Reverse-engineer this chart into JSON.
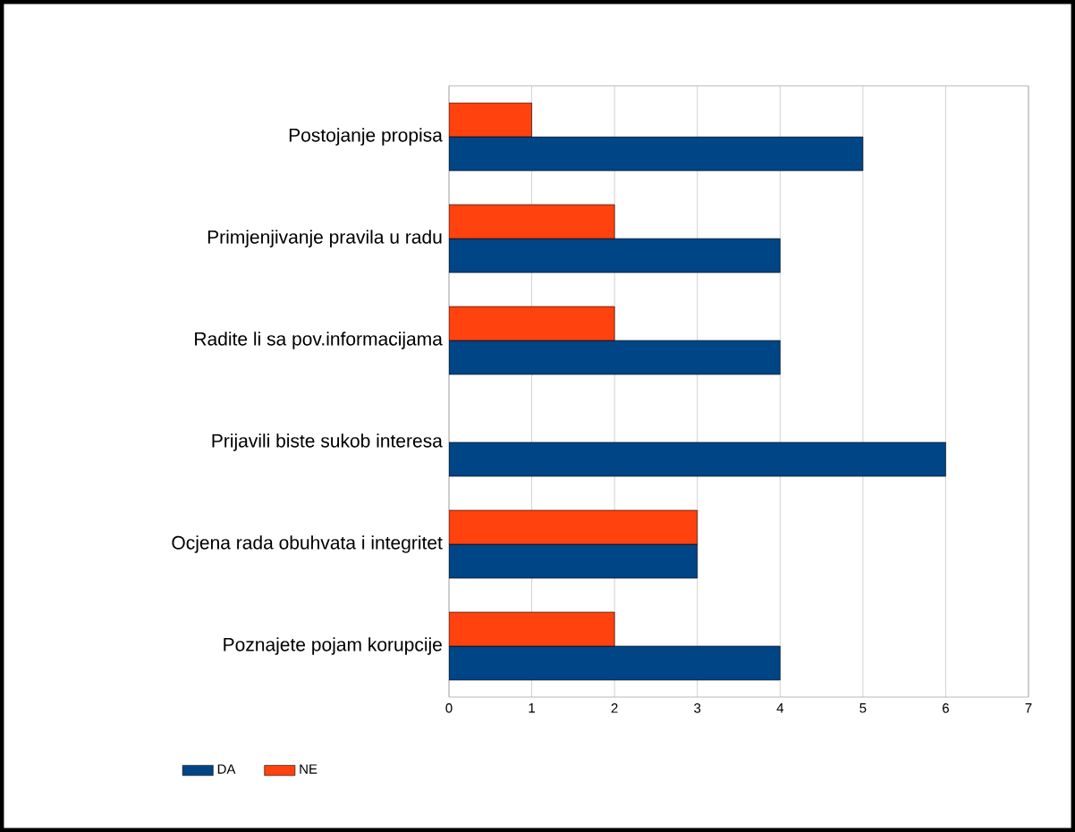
{
  "chart_data": {
    "type": "bar",
    "orientation": "horizontal",
    "categories": [
      "Postojanje propisa",
      "Primjenjivanje pravila u radu",
      "Radite li sa pov.informacijama",
      "Prijavili biste sukob interesa",
      "Ocjena rada obuhvata i integritet",
      "Poznajete pojam korupcije"
    ],
    "series": [
      {
        "name": "DA",
        "color": "#004586",
        "values": [
          5,
          4,
          4,
          6,
          3,
          4
        ]
      },
      {
        "name": "NE",
        "color": "#ff420e",
        "values": [
          1,
          2,
          2,
          null,
          3,
          2
        ]
      }
    ],
    "xlim": [
      0,
      7
    ],
    "xticks": [
      0,
      1,
      2,
      3,
      4,
      5,
      6,
      7
    ],
    "grid": "x",
    "legend": "bottom"
  }
}
